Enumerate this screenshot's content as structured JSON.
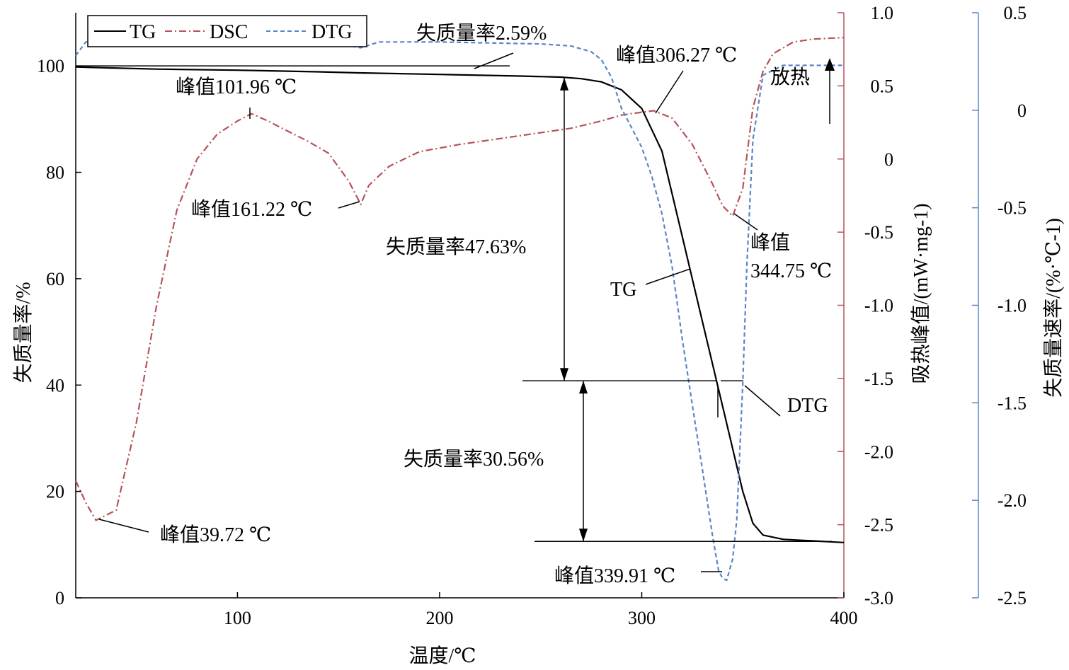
{
  "chart_data": {
    "type": "line",
    "x_axis": {
      "label": "温度/℃",
      "range": [
        20,
        400
      ],
      "ticks": [
        "100",
        "200",
        "300",
        "400"
      ]
    },
    "y_axes": {
      "left": {
        "label": "失质量率/%",
        "range": [
          0,
          110
        ],
        "ticks": [
          "0",
          "20",
          "40",
          "60",
          "80",
          "100"
        ],
        "color": "#000000"
      },
      "middle": {
        "label": "吸热峰值/(mW·mg-1)",
        "range": [
          -3.0,
          1.0
        ],
        "ticks": [
          "-3.0",
          "-2.5",
          "-2.0",
          "-1.5",
          "-1.0",
          "-0.5",
          "0",
          "0.5",
          "1.0"
        ],
        "color": "#b5535a"
      },
      "right": {
        "label": "失质量速率/(%·℃-1)",
        "range": [
          -2.5,
          0.5
        ],
        "ticks": [
          "-2.5",
          "-2.0",
          "-1.5",
          "-1.0",
          "-0.5",
          "0",
          "0.5"
        ],
        "color": "#5a86c5"
      }
    },
    "legend": {
      "placement": "top-left",
      "entries": [
        "TG",
        "DSC",
        "DTG"
      ]
    },
    "series": [
      {
        "name": "TG",
        "axis": "left",
        "color": "#000000",
        "style": "solid",
        "x": [
          20,
          60,
          100,
          140,
          160,
          200,
          240,
          260,
          270,
          280,
          290,
          300,
          310,
          320,
          330,
          335,
          340,
          345,
          350,
          355,
          360,
          370,
          380,
          400
        ],
        "y": [
          99.8,
          99.4,
          99.2,
          98.9,
          98.7,
          98.4,
          98.1,
          97.9,
          97.6,
          97.0,
          95.5,
          92.0,
          84.0,
          68.0,
          52.0,
          44.0,
          36.0,
          28.0,
          20.0,
          14.0,
          11.8,
          11.0,
          10.8,
          10.4
        ]
      },
      {
        "name": "DSC",
        "axis": "middle",
        "color": "#b5535a",
        "style": "dashdot",
        "x": [
          20,
          25,
          30,
          40,
          50,
          60,
          70,
          80,
          90,
          100,
          107,
          115,
          125,
          135,
          145,
          155,
          161,
          165,
          175,
          190,
          210,
          240,
          265,
          280,
          290,
          300,
          306,
          315,
          325,
          335,
          340,
          345,
          350,
          355,
          360,
          365,
          375,
          385,
          400
        ],
        "y": [
          -2.2,
          -2.35,
          -2.47,
          -2.4,
          -1.8,
          -1.0,
          -0.35,
          0.0,
          0.17,
          0.26,
          0.31,
          0.26,
          0.19,
          0.12,
          0.04,
          -0.15,
          -0.31,
          -0.18,
          -0.05,
          0.05,
          0.1,
          0.16,
          0.21,
          0.26,
          0.3,
          0.32,
          0.33,
          0.28,
          0.1,
          -0.17,
          -0.32,
          -0.39,
          -0.2,
          0.35,
          0.6,
          0.72,
          0.8,
          0.82,
          0.83
        ]
      },
      {
        "name": "DTG",
        "axis": "right",
        "color": "#5a86c5",
        "style": "dashed",
        "x": [
          20,
          25,
          50,
          75,
          100,
          130,
          150,
          161,
          170,
          200,
          250,
          265,
          275,
          280,
          285,
          290,
          295,
          300,
          305,
          310,
          315,
          320,
          325,
          330,
          335,
          338,
          340,
          342,
          345,
          347,
          350,
          352,
          355,
          360,
          370,
          380,
          400
        ],
        "y": [
          0.28,
          0.35,
          0.36,
          0.37,
          0.36,
          0.35,
          0.34,
          0.32,
          0.35,
          0.35,
          0.34,
          0.33,
          0.3,
          0.26,
          0.17,
          0.01,
          -0.09,
          -0.19,
          -0.34,
          -0.53,
          -0.8,
          -1.17,
          -1.51,
          -1.84,
          -2.18,
          -2.36,
          -2.4,
          -2.41,
          -2.3,
          -2.1,
          -1.4,
          -0.8,
          -0.15,
          0.18,
          0.23,
          0.23,
          0.23
        ]
      }
    ],
    "annotations": {
      "peak_39": "峰值39.72 ℃",
      "peak_101": "峰值101.96 ℃",
      "peak_161": "峰值161.22 ℃",
      "peak_306": "峰值306.27 ℃",
      "peak_344_a": "峰值",
      "peak_344_b": "344.75 ℃",
      "peak_339": "峰值339.91 ℃",
      "loss_259": "失质量率2.59%",
      "loss_4763": "失质量率47.63%",
      "loss_3056": "失质量率30.56%",
      "exo": "放热",
      "tg_label": "TG",
      "dtg_label": "DTG"
    }
  }
}
